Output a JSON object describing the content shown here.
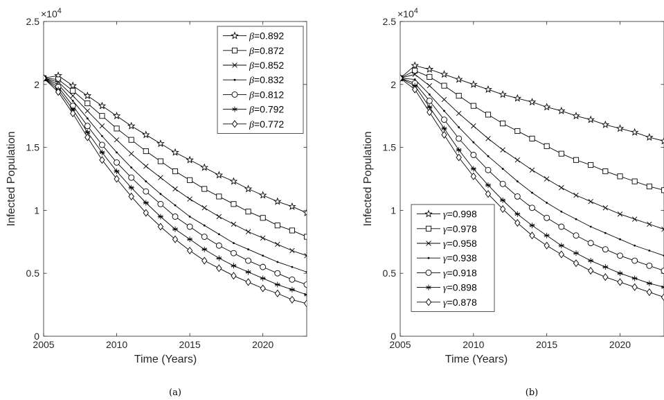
{
  "chart_data": [
    {
      "type": "line",
      "caption": "(a)",
      "xlabel": "Time (Years)",
      "ylabel": "Infected Population",
      "xlim": [
        2005,
        2023
      ],
      "ylim": [
        0,
        2.5
      ],
      "xticks": [
        "2005",
        "2010",
        "2015",
        "2020"
      ],
      "yticks": [
        "0",
        "0.5",
        "1",
        "1.5",
        "2",
        "2.5"
      ],
      "multiplier_base": "10",
      "multiplier_exp": "4",
      "legend_position": "top-right",
      "legend_symbol": "β",
      "x": [
        2005,
        2006,
        2007,
        2008,
        2009,
        2010,
        2011,
        2012,
        2013,
        2014,
        2015,
        2016,
        2017,
        2018,
        2019,
        2020,
        2021,
        2022,
        2023
      ],
      "series": [
        {
          "name": "=0.892",
          "marker": "star",
          "values": [
            2.05,
            2.07,
            1.99,
            1.91,
            1.83,
            1.75,
            1.67,
            1.6,
            1.53,
            1.46,
            1.4,
            1.34,
            1.28,
            1.23,
            1.17,
            1.12,
            1.07,
            1.03,
            0.98
          ]
        },
        {
          "name": "=0.872",
          "marker": "square",
          "values": [
            2.05,
            2.04,
            1.95,
            1.85,
            1.75,
            1.65,
            1.56,
            1.47,
            1.39,
            1.31,
            1.24,
            1.17,
            1.11,
            1.05,
            0.99,
            0.94,
            0.88,
            0.84,
            0.79
          ]
        },
        {
          "name": "=0.852",
          "marker": "x",
          "values": [
            2.05,
            2.02,
            1.91,
            1.79,
            1.67,
            1.56,
            1.45,
            1.35,
            1.26,
            1.17,
            1.09,
            1.02,
            0.95,
            0.89,
            0.83,
            0.78,
            0.73,
            0.68,
            0.64
          ]
        },
        {
          "name": "=0.832",
          "marker": "dot",
          "values": [
            2.05,
            2.0,
            1.87,
            1.73,
            1.59,
            1.46,
            1.34,
            1.23,
            1.13,
            1.04,
            0.95,
            0.88,
            0.81,
            0.74,
            0.69,
            0.64,
            0.59,
            0.55,
            0.51
          ]
        },
        {
          "name": "=0.812",
          "marker": "circle",
          "values": [
            2.05,
            1.98,
            1.83,
            1.67,
            1.52,
            1.38,
            1.26,
            1.15,
            1.05,
            0.95,
            0.87,
            0.79,
            0.72,
            0.66,
            0.6,
            0.55,
            0.5,
            0.45,
            0.41
          ]
        },
        {
          "name": "=0.792",
          "marker": "asterisk",
          "values": [
            2.05,
            1.96,
            1.8,
            1.62,
            1.46,
            1.31,
            1.18,
            1.06,
            0.95,
            0.85,
            0.77,
            0.69,
            0.62,
            0.56,
            0.51,
            0.46,
            0.41,
            0.37,
            0.33
          ]
        },
        {
          "name": "=0.772",
          "marker": "diamond",
          "values": [
            2.05,
            1.94,
            1.77,
            1.58,
            1.4,
            1.25,
            1.11,
            0.98,
            0.87,
            0.77,
            0.68,
            0.6,
            0.54,
            0.48,
            0.43,
            0.38,
            0.34,
            0.29,
            0.26
          ]
        }
      ]
    },
    {
      "type": "line",
      "caption": "(b)",
      "xlabel": "Time (Years)",
      "ylabel": "Infected Population",
      "xlim": [
        2005,
        2023
      ],
      "ylim": [
        0,
        2.5
      ],
      "xticks": [
        "2005",
        "2010",
        "2015",
        "2020"
      ],
      "yticks": [
        "0",
        "0.5",
        "1",
        "1.5",
        "2",
        "2.5"
      ],
      "multiplier_base": "10",
      "multiplier_exp": "4",
      "legend_position": "bottom-left",
      "legend_symbol": "γ",
      "x": [
        2005,
        2006,
        2007,
        2008,
        2009,
        2010,
        2011,
        2012,
        2013,
        2014,
        2015,
        2016,
        2017,
        2018,
        2019,
        2020,
        2021,
        2022,
        2023
      ],
      "series": [
        {
          "name": "=0.998",
          "marker": "star",
          "values": [
            2.05,
            2.15,
            2.12,
            2.08,
            2.04,
            2.0,
            1.96,
            1.92,
            1.89,
            1.86,
            1.82,
            1.79,
            1.75,
            1.72,
            1.68,
            1.65,
            1.62,
            1.58,
            1.55
          ]
        },
        {
          "name": "=0.978",
          "marker": "square",
          "values": [
            2.05,
            2.11,
            2.06,
            1.99,
            1.91,
            1.83,
            1.76,
            1.69,
            1.63,
            1.57,
            1.51,
            1.45,
            1.4,
            1.36,
            1.31,
            1.27,
            1.23,
            1.19,
            1.16
          ]
        },
        {
          "name": "=0.958",
          "marker": "x",
          "values": [
            2.05,
            2.08,
            1.99,
            1.88,
            1.77,
            1.67,
            1.57,
            1.48,
            1.4,
            1.32,
            1.25,
            1.18,
            1.12,
            1.07,
            1.02,
            0.97,
            0.93,
            0.89,
            0.85
          ]
        },
        {
          "name": "=0.938",
          "marker": "dot",
          "values": [
            2.05,
            2.04,
            1.92,
            1.79,
            1.66,
            1.54,
            1.43,
            1.33,
            1.23,
            1.14,
            1.06,
            0.99,
            0.93,
            0.87,
            0.82,
            0.77,
            0.72,
            0.68,
            0.64
          ]
        },
        {
          "name": "=0.918",
          "marker": "circle",
          "values": [
            2.05,
            2.01,
            1.87,
            1.72,
            1.57,
            1.44,
            1.32,
            1.21,
            1.11,
            1.02,
            0.94,
            0.87,
            0.8,
            0.74,
            0.69,
            0.64,
            0.6,
            0.56,
            0.52
          ]
        },
        {
          "name": "=0.898",
          "marker": "asterisk",
          "values": [
            2.05,
            1.99,
            1.82,
            1.65,
            1.48,
            1.33,
            1.2,
            1.08,
            0.97,
            0.88,
            0.8,
            0.72,
            0.66,
            0.6,
            0.55,
            0.5,
            0.46,
            0.42,
            0.39
          ]
        },
        {
          "name": "=0.878",
          "marker": "diamond",
          "values": [
            2.05,
            1.96,
            1.78,
            1.6,
            1.42,
            1.27,
            1.13,
            1.01,
            0.9,
            0.8,
            0.72,
            0.65,
            0.58,
            0.52,
            0.47,
            0.43,
            0.39,
            0.35,
            0.31
          ]
        }
      ]
    }
  ]
}
